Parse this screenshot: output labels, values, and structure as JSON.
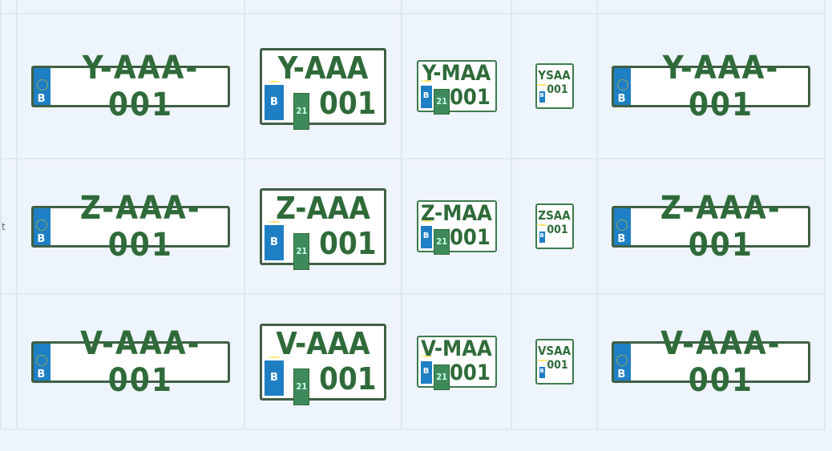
{
  "left_column_fragment": "t",
  "colors": {
    "background": "#eef4fb",
    "border": "#dce8f3",
    "plate_text": "#2f6b3a",
    "eu_band": "#1e7fc4"
  },
  "plate_country": "B",
  "sticker": "21",
  "rows": [
    {
      "long": "Y-AAA-001",
      "square_top": "Y-AAA",
      "square_bottom": "001",
      "moto_top": "Y-MAA",
      "moto_bottom": "001",
      "small_top": "YSAA",
      "small_bottom": "001"
    },
    {
      "long": "Z-AAA-001",
      "square_top": "Z-AAA",
      "square_bottom": "001",
      "moto_top": "Z-MAA",
      "moto_bottom": "001",
      "small_top": "ZSAA",
      "small_bottom": "001"
    },
    {
      "long": "V-AAA-001",
      "square_top": "V-AAA",
      "square_bottom": "001",
      "moto_top": "V-MAA",
      "moto_bottom": "001",
      "small_top": "VSAA",
      "small_bottom": "001"
    }
  ]
}
